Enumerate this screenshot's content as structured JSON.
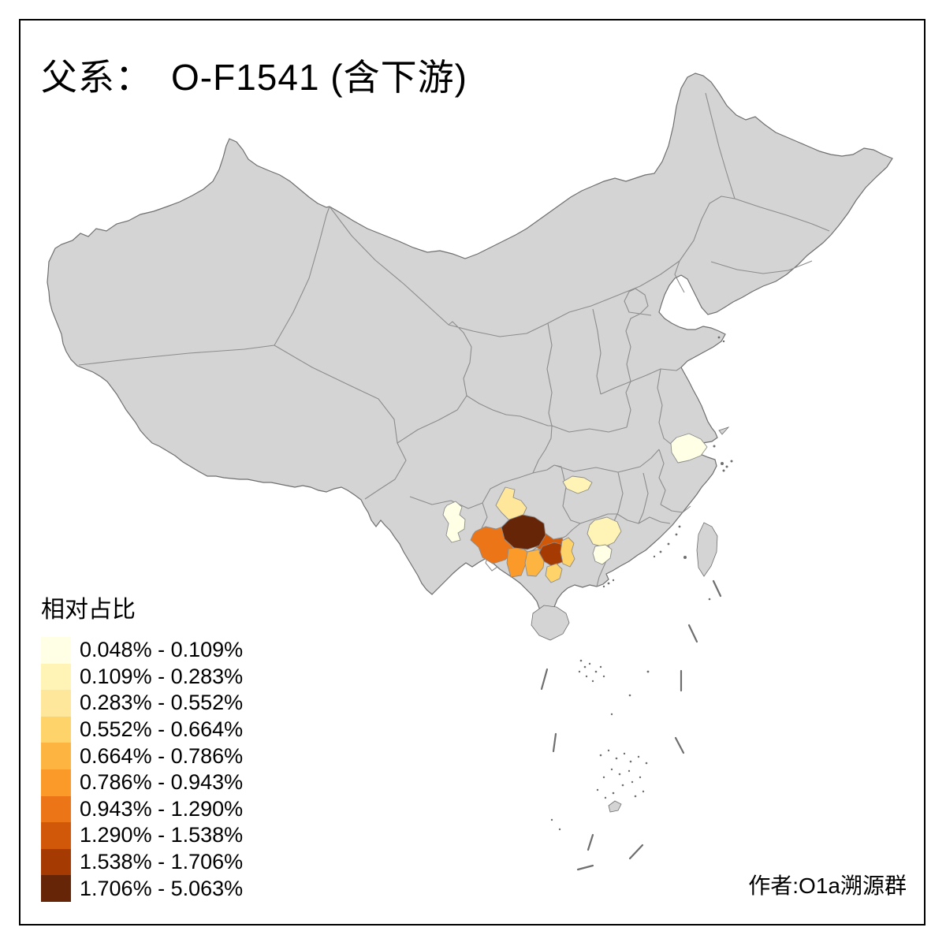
{
  "title": {
    "label": "父系：",
    "value": "O-F1541 (含下游)"
  },
  "legend": {
    "title": "相对占比",
    "classes": [
      {
        "range": "0.048% - 0.109%",
        "color": "#FFFFE5"
      },
      {
        "range": "0.109% - 0.283%",
        "color": "#FFF4B5"
      },
      {
        "range": "0.283% - 0.552%",
        "color": "#FEE79B"
      },
      {
        "range": "0.552% - 0.664%",
        "color": "#FED36A"
      },
      {
        "range": "0.664% - 0.786%",
        "color": "#FEB441"
      },
      {
        "range": "0.786% - 0.943%",
        "color": "#FB9A29"
      },
      {
        "range": "0.943% - 1.290%",
        "color": "#EC7518"
      },
      {
        "range": "1.290% - 1.538%",
        "color": "#D15808"
      },
      {
        "range": "1.538% - 1.706%",
        "color": "#A63A03"
      },
      {
        "range": "1.706% - 5.063%",
        "color": "#662506"
      }
    ]
  },
  "credit": {
    "label": "作者:O1a溯源群"
  },
  "map": {
    "land_fill": "#D4D4D4",
    "border_color": "#8C8C8C",
    "coast_color": "#6E6E6E",
    "sea_color": "#FFFFFF",
    "frame_color": "#000000",
    "regions": [
      {
        "id": "south-sichuan-liangshan",
        "class": 1
      },
      {
        "id": "north-zhejiang",
        "class": 1
      },
      {
        "id": "west-hunan",
        "class": 2
      },
      {
        "id": "north-guizhou",
        "class": 3
      },
      {
        "id": "southwest-guizhou",
        "class": 10
      },
      {
        "id": "southeast-yunnan",
        "class": 7
      },
      {
        "id": "west-guangxi",
        "class": 6
      },
      {
        "id": "south-guangxi",
        "class": 5
      },
      {
        "id": "hechi-north-guangxi",
        "class": 8
      },
      {
        "id": "central-guangxi",
        "class": 9
      },
      {
        "id": "northeast-guangxi",
        "class": 4
      },
      {
        "id": "southeast-guangxi",
        "class": 4
      },
      {
        "id": "wuzhou-zhaoqing",
        "class": 2
      },
      {
        "id": "yunfu-west-guangdong",
        "class": 1
      }
    ]
  }
}
